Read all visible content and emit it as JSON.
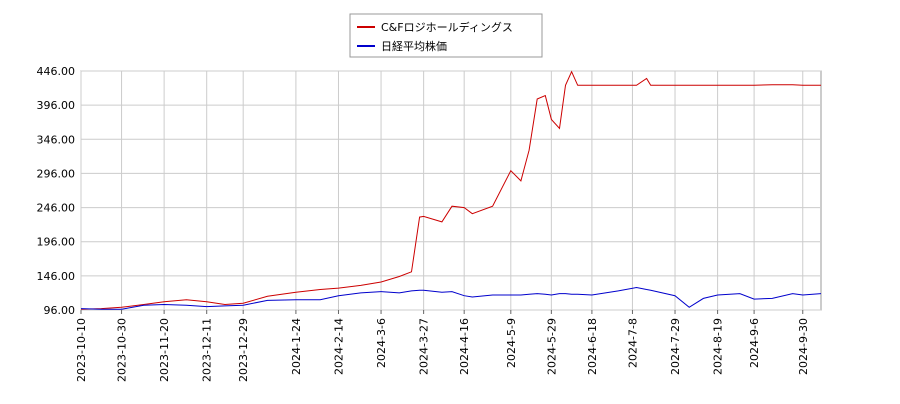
{
  "chart_data": {
    "type": "line",
    "x": [
      "2023-10-10",
      "2023-10-20",
      "2023-10-30",
      "2023-11-10",
      "2023-11-20",
      "2023-12-1",
      "2023-12-11",
      "2023-12-20",
      "2023-12-29",
      "2024-1-10",
      "2024-1-24",
      "2024-2-5",
      "2024-2-14",
      "2024-2-25",
      "2024-3-6",
      "2024-3-15",
      "2024-3-21",
      "2024-3-25",
      "2024-3-27",
      "2024-4-5",
      "2024-4-10",
      "2024-4-16",
      "2024-4-20",
      "2024-4-30",
      "2024-5-9",
      "2024-5-14",
      "2024-5-18",
      "2024-5-22",
      "2024-5-26",
      "2024-5-29",
      "2024-6-2",
      "2024-6-5",
      "2024-6-8",
      "2024-6-11",
      "2024-6-18",
      "2024-7-1",
      "2024-7-10",
      "2024-7-15",
      "2024-7-17",
      "2024-7-29",
      "2024-8-5",
      "2024-8-12",
      "2024-8-19",
      "2024-8-30",
      "2024-9-6",
      "2024-9-15",
      "2024-9-25",
      "2024-9-30",
      "2024-10-9"
    ],
    "series": [
      {
        "name": "C&Fロジホールディングス",
        "color": "#cc0000",
        "values": [
          97,
          98,
          100,
          104,
          108,
          111,
          108,
          104,
          106,
          116,
          122,
          126,
          128,
          132,
          137,
          145,
          152,
          232,
          233,
          225,
          248,
          246,
          237,
          248,
          300,
          285,
          330,
          405,
          410,
          375,
          362,
          425,
          445,
          425,
          425,
          425,
          425,
          435,
          425,
          425,
          425,
          425,
          425,
          425,
          425,
          426,
          426,
          425,
          425
        ]
      },
      {
        "name": "日経平均株価",
        "color": "#0000cc",
        "values": [
          98,
          97,
          97,
          103,
          104,
          103,
          101,
          102,
          103,
          110,
          111,
          111,
          117,
          121,
          123,
          121,
          124,
          125,
          125,
          122,
          123,
          117,
          115,
          118,
          118,
          118,
          119,
          120,
          119,
          118,
          120,
          120,
          119,
          119,
          118,
          124,
          129,
          126,
          125,
          117,
          100,
          113,
          118,
          120,
          112,
          113,
          120,
          118,
          120
        ]
      }
    ],
    "xlim": [
      "2023-10-10",
      "2024-10-9"
    ],
    "xticks": [
      "2023-10-10",
      "2023-10-30",
      "2023-11-20",
      "2023-12-11",
      "2023-12-29",
      "2024-1-24",
      "2024-2-14",
      "2024-3-6",
      "2024-3-27",
      "2024-4-16",
      "2024-5-9",
      "2024-5-29",
      "2024-6-18",
      "2024-7-8",
      "2024-7-29",
      "2024-8-19",
      "2024-9-6",
      "2024-9-30"
    ],
    "ylim": [
      96,
      446
    ],
    "yticks": [
      {
        "value": 96,
        "label": "96.00"
      },
      {
        "value": 146,
        "label": "146.00"
      },
      {
        "value": 196,
        "label": "196.00"
      },
      {
        "value": 246,
        "label": "246.00"
      },
      {
        "value": 296,
        "label": "296.00"
      },
      {
        "value": 346,
        "label": "346.00"
      },
      {
        "value": 396,
        "label": "396.00"
      },
      {
        "value": 446,
        "label": "446.00"
      }
    ],
    "grid": true,
    "legend": "top"
  }
}
